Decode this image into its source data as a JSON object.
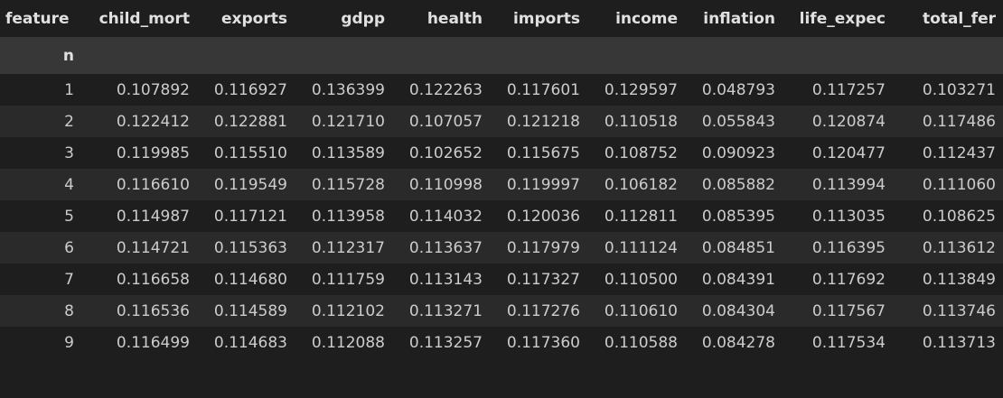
{
  "table": {
    "columns_name": "feature",
    "index_name": "n",
    "columns": [
      "child_mort",
      "exports",
      "gdpp",
      "health",
      "imports",
      "income",
      "inflation",
      "life_expec",
      "total_fer"
    ],
    "rows": [
      {
        "index": "1",
        "values": [
          "0.107892",
          "0.116927",
          "0.136399",
          "0.122263",
          "0.117601",
          "0.129597",
          "0.048793",
          "0.117257",
          "0.103271"
        ]
      },
      {
        "index": "2",
        "values": [
          "0.122412",
          "0.122881",
          "0.121710",
          "0.107057",
          "0.121218",
          "0.110518",
          "0.055843",
          "0.120874",
          "0.117486"
        ]
      },
      {
        "index": "3",
        "values": [
          "0.119985",
          "0.115510",
          "0.113589",
          "0.102652",
          "0.115675",
          "0.108752",
          "0.090923",
          "0.120477",
          "0.112437"
        ]
      },
      {
        "index": "4",
        "values": [
          "0.116610",
          "0.119549",
          "0.115728",
          "0.110998",
          "0.119997",
          "0.106182",
          "0.085882",
          "0.113994",
          "0.111060"
        ]
      },
      {
        "index": "5",
        "values": [
          "0.114987",
          "0.117121",
          "0.113958",
          "0.114032",
          "0.120036",
          "0.112811",
          "0.085395",
          "0.113035",
          "0.108625"
        ]
      },
      {
        "index": "6",
        "values": [
          "0.114721",
          "0.115363",
          "0.112317",
          "0.113637",
          "0.117979",
          "0.111124",
          "0.084851",
          "0.116395",
          "0.113612"
        ]
      },
      {
        "index": "7",
        "values": [
          "0.116658",
          "0.114680",
          "0.111759",
          "0.113143",
          "0.117327",
          "0.110500",
          "0.084391",
          "0.117692",
          "0.113849"
        ]
      },
      {
        "index": "8",
        "values": [
          "0.116536",
          "0.114589",
          "0.112102",
          "0.113271",
          "0.117276",
          "0.110610",
          "0.084304",
          "0.117567",
          "0.113746"
        ]
      },
      {
        "index": "9",
        "values": [
          "0.116499",
          "0.114683",
          "0.112088",
          "0.113257",
          "0.117360",
          "0.110588",
          "0.084278",
          "0.117534",
          "0.113713"
        ]
      }
    ]
  }
}
